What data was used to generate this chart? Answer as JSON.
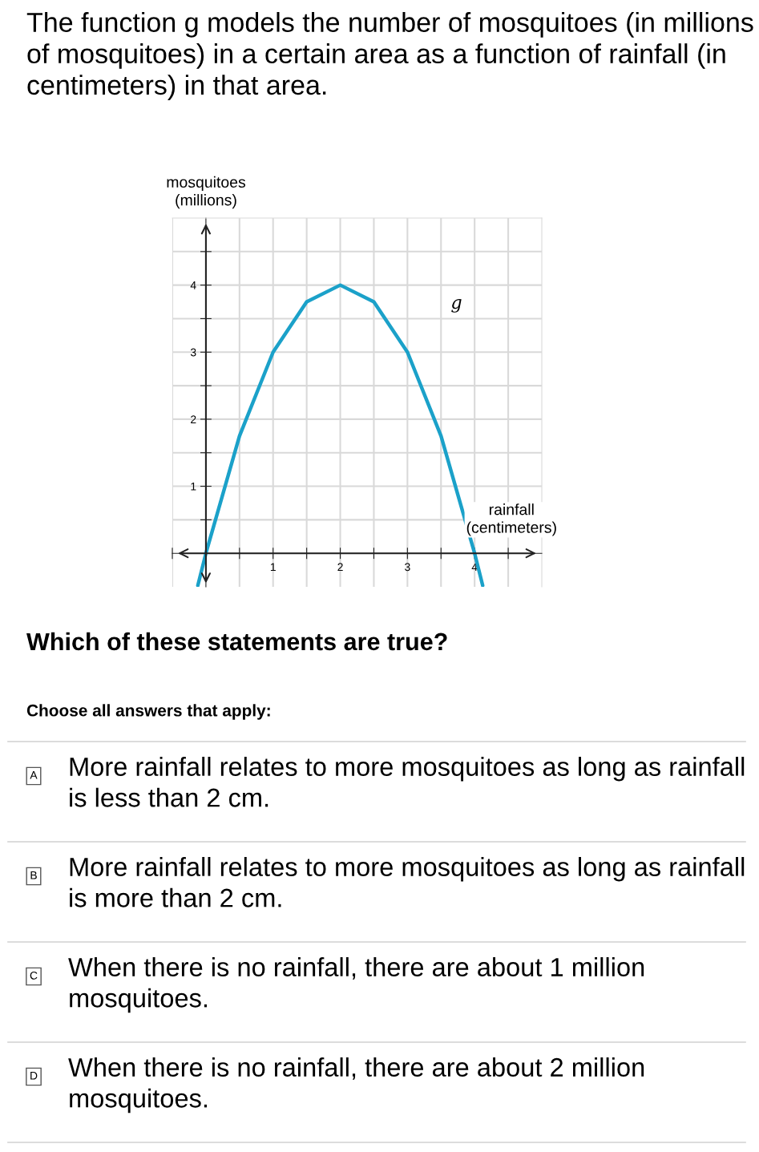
{
  "chart_data": {
    "type": "line",
    "title": "The function g models the number of mosquitoes (in millions of mosquitoes) in a certain area as a function of rainfall (in centimeters) in that area.",
    "xlabel": "rainfall\n(centimeters)",
    "ylabel": "mosquitoes\n(millions)",
    "x": [
      -0.12,
      0,
      0.5,
      1,
      1.5,
      2,
      2.5,
      3,
      3.5,
      4,
      4.12
    ],
    "series": [
      {
        "color": "#1ba1c9",
        "values": [
          -0.48,
          0,
          1.75,
          3,
          3.75,
          4,
          3.75,
          3,
          1.75,
          0,
          -0.48
        ]
      }
    ],
    "xlim": [
      -0.5,
      5
    ],
    "ylim": [
      -0.5,
      5
    ],
    "xticks": [
      {
        "value": -0.5,
        "label": null
      },
      {
        "value": 0.5,
        "label": null
      },
      1,
      {
        "value": 1.5,
        "label": null
      },
      2,
      {
        "value": 2.5,
        "label": null
      },
      3,
      {
        "value": 3.5,
        "label": null
      },
      4,
      {
        "value": 4.5,
        "label": null
      }
    ],
    "yticks": [
      {
        "value": 0.5,
        "label": null
      },
      1,
      {
        "value": 1.5,
        "label": null
      },
      2,
      {
        "value": 2.5,
        "label": null
      },
      3,
      {
        "value": 3.5,
        "label": null
      },
      4,
      {
        "value": 4.5,
        "label": null
      }
    ],
    "grid": true,
    "marker": "none",
    "line_style": "solid",
    "annotations": [
      "g",
      "Which of these statements are true?",
      "Choose all answers that apply:",
      "A",
      "More rainfall relates to more mosquitoes as long as rainfall is less than 2 cm.",
      "B",
      "More rainfall relates to more mosquitoes as long as rainfall is more than 2 cm.",
      "C",
      "When there is no rainfall, there are about 1 million mosquitoes.",
      "D",
      "When there is no rainfall, there are about 2 million mosquitoes."
    ]
  }
}
